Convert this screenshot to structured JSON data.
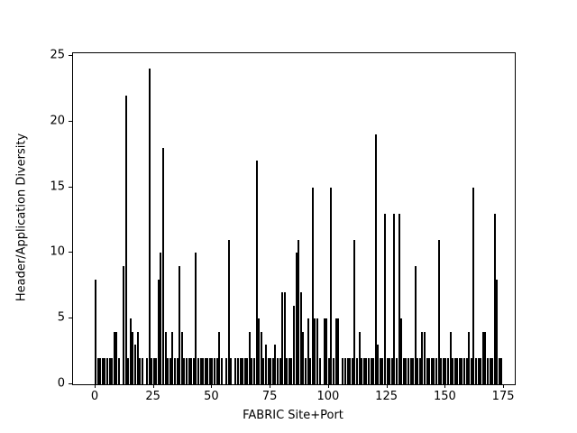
{
  "chart_data": {
    "type": "bar",
    "title": "",
    "xlabel": "FABRIC Site+Port",
    "ylabel": "Header/Application Diversity",
    "x_start": 0,
    "values": [
      8,
      2,
      2,
      2,
      2,
      2,
      2,
      2,
      4,
      4,
      2,
      0,
      9,
      22,
      2,
      5,
      4,
      3,
      4,
      2,
      2,
      0,
      2,
      24,
      2,
      2,
      2,
      8,
      10,
      18,
      4,
      2,
      2,
      4,
      2,
      2,
      9,
      4,
      2,
      2,
      2,
      2,
      2,
      10,
      2,
      2,
      2,
      2,
      2,
      2,
      2,
      2,
      2,
      4,
      2,
      0,
      2,
      11,
      2,
      0,
      2,
      2,
      2,
      2,
      2,
      2,
      4,
      2,
      2,
      17,
      5,
      4,
      2,
      3,
      2,
      2,
      2,
      3,
      2,
      2,
      7,
      7,
      2,
      2,
      2,
      6,
      10,
      11,
      7,
      4,
      2,
      5,
      2,
      15,
      5,
      5,
      2,
      0,
      5,
      5,
      2,
      15,
      2,
      5,
      5,
      0,
      2,
      2,
      2,
      2,
      2,
      11,
      2,
      4,
      2,
      2,
      2,
      2,
      2,
      2,
      19,
      3,
      2,
      2,
      13,
      2,
      2,
      2,
      13,
      2,
      13,
      5,
      2,
      2,
      2,
      2,
      2,
      9,
      2,
      2,
      4,
      4,
      2,
      2,
      2,
      2,
      2,
      11,
      2,
      2,
      2,
      2,
      4,
      2,
      2,
      2,
      2,
      2,
      2,
      2,
      4,
      2,
      15,
      2,
      2,
      2,
      4,
      4,
      2,
      2,
      2,
      13,
      8,
      2,
      2
    ],
    "xticks": [
      0,
      25,
      50,
      75,
      100,
      125,
      150,
      175
    ],
    "yticks": [
      0,
      5,
      10,
      15,
      20,
      25
    ],
    "xlim": [
      -9.66,
      179.6
    ],
    "ylim": [
      0,
      25.2
    ],
    "grid": false,
    "legend": null,
    "bar_color": "#4d4d4d",
    "edge_color": "#000000",
    "background_color": "#ffffff"
  }
}
